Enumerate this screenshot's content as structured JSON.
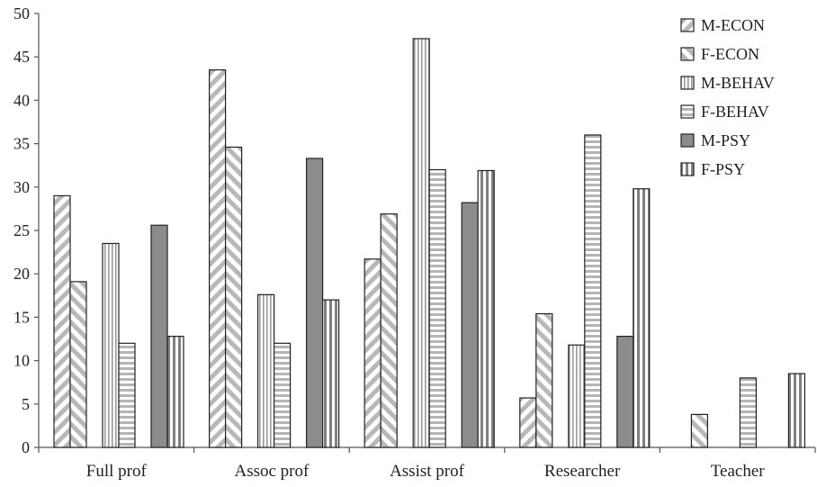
{
  "chart_data": {
    "type": "bar",
    "title": "",
    "xlabel": "",
    "ylabel": "",
    "ylim": [
      0,
      50
    ],
    "yticks": [
      0,
      5,
      10,
      15,
      20,
      25,
      30,
      35,
      40,
      45,
      50
    ],
    "grid": false,
    "legend_position": "top-right",
    "categories": [
      "Full prof",
      "Assoc prof",
      "Assist prof",
      "Researcher",
      "Teacher"
    ],
    "series": [
      {
        "name": "M-ECON",
        "pattern": "diag-left",
        "values": [
          29.0,
          43.5,
          21.7,
          5.7,
          0
        ]
      },
      {
        "name": "F-ECON",
        "pattern": "diag-right",
        "values": [
          19.1,
          34.6,
          26.9,
          15.4,
          3.8
        ]
      },
      {
        "name": "M-BEHAV",
        "pattern": "vertical-fine",
        "values": [
          23.5,
          17.6,
          47.1,
          11.8,
          0
        ]
      },
      {
        "name": "F-BEHAV",
        "pattern": "horizontal",
        "values": [
          12.0,
          12.0,
          32.0,
          36.0,
          8.0
        ]
      },
      {
        "name": "M-PSY",
        "pattern": "solid-gray",
        "values": [
          25.6,
          33.3,
          28.2,
          12.8,
          0
        ]
      },
      {
        "name": "F-PSY",
        "pattern": "vertical-wide",
        "values": [
          12.8,
          17.0,
          31.9,
          29.8,
          8.5
        ]
      }
    ],
    "colors": {
      "bar_stroke": "#222222",
      "solid_fill": "#8c8c8c",
      "pattern_stroke": "#b0b0b0"
    }
  }
}
